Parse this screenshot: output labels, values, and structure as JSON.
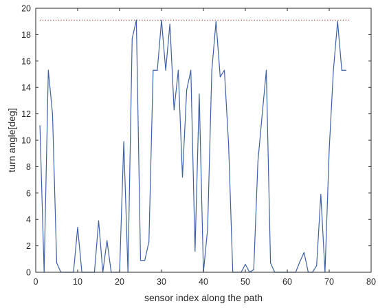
{
  "chart_data": {
    "type": "line",
    "xlabel": "sensor index along the path",
    "ylabel": "turn angle[deg]",
    "xlim": [
      0,
      80
    ],
    "ylim": [
      0,
      20
    ],
    "xticks": [
      0,
      10,
      20,
      30,
      40,
      50,
      60,
      70,
      80
    ],
    "yticks": [
      0,
      2,
      4,
      6,
      8,
      10,
      12,
      14,
      16,
      18,
      20
    ],
    "grid": false,
    "line_color": "#3b5fa8",
    "reference_line": {
      "y": 19.1,
      "x_range": [
        1,
        75
      ],
      "color": "#b22222",
      "style": "dotted"
    },
    "series": [
      {
        "x": [
          1,
          2,
          3,
          4,
          5,
          6,
          7,
          8,
          9,
          10,
          11,
          12,
          13,
          14,
          15,
          16,
          17,
          18,
          19,
          20,
          21,
          22,
          23,
          24,
          25,
          26,
          27,
          28,
          29,
          30,
          31,
          32,
          33,
          34,
          35,
          36,
          37,
          38,
          39,
          40,
          41,
          42,
          43,
          44,
          45,
          46,
          47,
          48,
          49,
          50,
          51,
          52,
          53,
          54,
          55,
          56,
          57,
          58,
          59,
          60,
          61,
          62,
          63,
          64,
          65,
          66,
          67,
          68,
          69,
          70,
          71,
          72,
          73,
          74
        ],
        "y": [
          11.1,
          0,
          15.3,
          12.0,
          0.7,
          0,
          0,
          0,
          0,
          3.4,
          0,
          0,
          0,
          0,
          3.9,
          0,
          2.4,
          0,
          0,
          0,
          9.9,
          0,
          17.7,
          19.1,
          0.9,
          0.9,
          2.3,
          15.3,
          15.3,
          19.1,
          15.3,
          18.8,
          12.3,
          15.3,
          7.2,
          13.8,
          15.3,
          1.6,
          13.5,
          0,
          3.3,
          15.3,
          19.0,
          14.8,
          15.3,
          9.7,
          0,
          0,
          0,
          0.6,
          0,
          0.2,
          8.4,
          11.9,
          15.3,
          0.7,
          0,
          0,
          0,
          0,
          0,
          0,
          0.8,
          1.5,
          0,
          0,
          0.5,
          5.9,
          0,
          9.3,
          15.3,
          19.0,
          15.3,
          15.3
        ]
      }
    ]
  }
}
